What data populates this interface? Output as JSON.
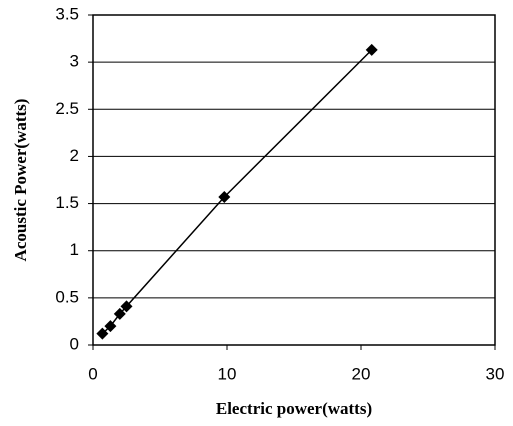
{
  "chart_data": {
    "type": "line",
    "xlabel": "Electric power(watts)",
    "ylabel": "Acoustic Power(watts)",
    "x": [
      0.7,
      1.3,
      2.0,
      2.5,
      9.8,
      20.8
    ],
    "values": [
      0.12,
      0.2,
      0.33,
      0.41,
      1.57,
      3.13
    ],
    "color": "#000000",
    "marker": "diamond",
    "xlim": [
      0,
      30
    ],
    "xticks": [
      0,
      10,
      20,
      30
    ],
    "ylim": [
      0,
      3.5
    ],
    "yticks": [
      0,
      0.5,
      1,
      1.5,
      2,
      2.5,
      3,
      3.5
    ],
    "grid": true
  }
}
